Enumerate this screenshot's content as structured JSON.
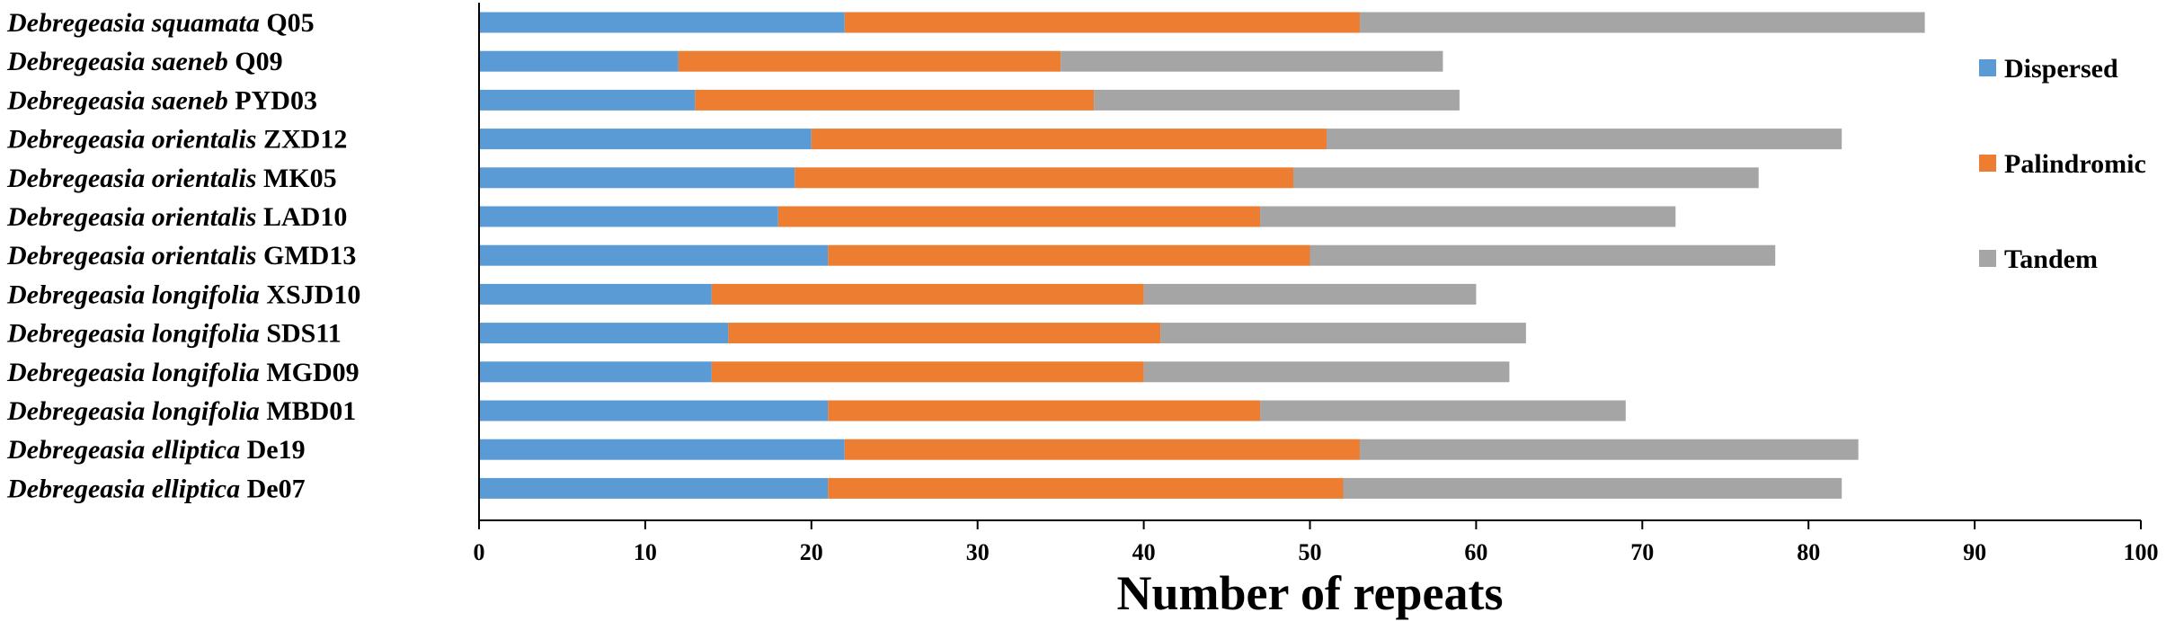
{
  "chart_data": {
    "type": "bar",
    "orientation": "horizontal",
    "stacked": true,
    "xlabel": "Number of repeats",
    "xlim": [
      0,
      100
    ],
    "xticks": [
      0,
      10,
      20,
      30,
      40,
      50,
      60,
      70,
      80,
      90,
      100
    ],
    "grid": false,
    "legend_position": "right",
    "categories": [
      {
        "genus": "Debregeasia squamata",
        "sample": "Q05"
      },
      {
        "genus": "Debregeasia saeneb",
        "sample": "Q09"
      },
      {
        "genus": "Debregeasia saeneb",
        "sample": "PYD03"
      },
      {
        "genus": "Debregeasia orientalis",
        "sample": "ZXD12"
      },
      {
        "genus": "Debregeasia orientalis",
        "sample": "MK05"
      },
      {
        "genus": "Debregeasia orientalis",
        "sample": "LAD10"
      },
      {
        "genus": "Debregeasia orientalis",
        "sample": "GMD13"
      },
      {
        "genus": "Debregeasia longifolia",
        "sample": "XSJD10"
      },
      {
        "genus": "Debregeasia longifolia",
        "sample": "SDS11"
      },
      {
        "genus": "Debregeasia longifolia",
        "sample": "MGD09"
      },
      {
        "genus": "Debregeasia longifolia",
        "sample": "MBD01"
      },
      {
        "genus": "Debregeasia elliptica",
        "sample": "De19"
      },
      {
        "genus": "Debregeasia elliptica",
        "sample": "De07"
      }
    ],
    "series": [
      {
        "name": "Dispersed",
        "color": "#5b9bd5",
        "values": [
          22,
          12,
          13,
          20,
          19,
          18,
          21,
          14,
          15,
          14,
          21,
          22,
          21
        ]
      },
      {
        "name": "Palindromic",
        "color": "#ed7d31",
        "values": [
          31,
          23,
          24,
          31,
          30,
          29,
          29,
          26,
          26,
          26,
          26,
          31,
          31
        ]
      },
      {
        "name": "Tandem",
        "color": "#a5a5a5",
        "values": [
          34,
          23,
          22,
          31,
          28,
          25,
          28,
          20,
          22,
          22,
          22,
          30,
          30
        ]
      }
    ]
  }
}
